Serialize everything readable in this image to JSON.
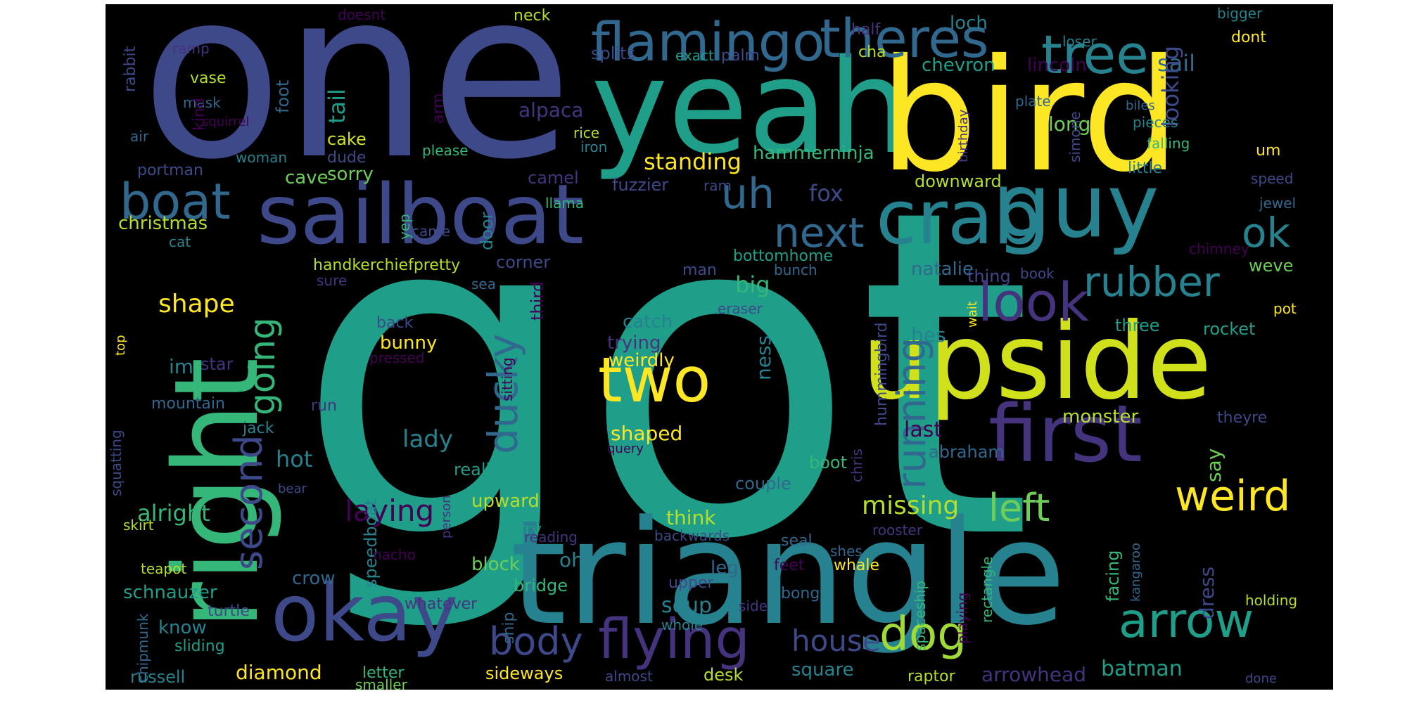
{
  "palette": {
    "dark_purple": "#440154",
    "purple": "#46337e",
    "indigo": "#3e4989",
    "blue": "#31688e",
    "teal": "#26828e",
    "green_teal": "#1f9e89",
    "green": "#35b779",
    "lime": "#6ece58",
    "yellow_green": "#b5de2b",
    "yellow": "#fde725",
    "background": "#000000"
  },
  "words": [
    {
      "text": "got",
      "color": "#1f9e89"
    },
    {
      "text": "one",
      "color": "#3e4989"
    },
    {
      "text": "yeah",
      "color": "#1f9e89"
    },
    {
      "text": "bird",
      "color": "#fde725"
    },
    {
      "text": "triangle",
      "color": "#26828e"
    },
    {
      "text": "upside",
      "color": "#d0e11c"
    },
    {
      "text": "sailboat",
      "color": "#3e4989"
    },
    {
      "text": "right",
      "color": "#35b779"
    },
    {
      "text": "guy",
      "color": "#26828e"
    },
    {
      "text": "crab",
      "color": "#26828e"
    },
    {
      "text": "first",
      "color": "#46337e"
    },
    {
      "text": "okay",
      "color": "#3e4989"
    },
    {
      "text": "flamingo",
      "color": "#31688e"
    },
    {
      "text": "theres",
      "color": "#31688e"
    },
    {
      "text": "tree",
      "color": "#26828e"
    },
    {
      "text": "two",
      "color": "#fde725"
    },
    {
      "text": "boat",
      "color": "#31688e"
    },
    {
      "text": "flying",
      "color": "#46337e"
    },
    {
      "text": "arrow",
      "color": "#1f9e89"
    },
    {
      "text": "weird",
      "color": "#fde725"
    },
    {
      "text": "dog",
      "color": "#a0da39"
    },
    {
      "text": "uh",
      "color": "#31688e"
    },
    {
      "text": "next",
      "color": "#31688e"
    },
    {
      "text": "rubber",
      "color": "#26828e"
    },
    {
      "text": "look",
      "color": "#46337e"
    },
    {
      "text": "ok",
      "color": "#26828e"
    },
    {
      "text": "ducky",
      "color": "#31688e"
    },
    {
      "text": "running",
      "color": "#31688e"
    },
    {
      "text": "left",
      "color": "#6ece58"
    },
    {
      "text": "body",
      "color": "#3e4989"
    },
    {
      "text": "second",
      "color": "#3e4989"
    },
    {
      "text": "going",
      "color": "#35b779"
    },
    {
      "text": "laying",
      "color": "#440154"
    },
    {
      "text": "house",
      "color": "#3e4989"
    },
    {
      "text": "missing",
      "color": "#b5de2b"
    },
    {
      "text": "shape",
      "color": "#fde725"
    },
    {
      "text": "tail",
      "color": "#1f9e89"
    },
    {
      "text": "standing",
      "color": "#fde725"
    },
    {
      "text": "alpaca",
      "color": "#46337e"
    },
    {
      "text": "fox",
      "color": "#3e4989"
    },
    {
      "text": "hammerninja",
      "color": "#35b779"
    },
    {
      "text": "chevron",
      "color": "#1f9e89"
    },
    {
      "text": "lincoln",
      "color": "#440154"
    },
    {
      "text": "sail",
      "color": "#31688e"
    },
    {
      "text": "looking",
      "color": "#3e4989"
    },
    {
      "text": "long",
      "color": "#6ece58"
    },
    {
      "text": "splits",
      "color": "#3e4989"
    },
    {
      "text": "loch",
      "color": "#26828e"
    },
    {
      "text": "half",
      "color": "#46337e"
    },
    {
      "text": "cha",
      "color": "#b5de2b"
    },
    {
      "text": "exact",
      "color": "#1f9e89"
    },
    {
      "text": "palm",
      "color": "#3e4989"
    },
    {
      "text": "neck",
      "color": "#b5de2b"
    },
    {
      "text": "doesnt",
      "color": "#440154"
    },
    {
      "text": "bigger",
      "color": "#26828e"
    },
    {
      "text": "dont",
      "color": "#fde725"
    },
    {
      "text": "loser",
      "color": "#26828e"
    },
    {
      "text": "ramp",
      "color": "#46337e"
    },
    {
      "text": "rabbit",
      "color": "#3e4989"
    },
    {
      "text": "vase",
      "color": "#b5de2b"
    },
    {
      "text": "mask",
      "color": "#31688e"
    },
    {
      "text": "foot",
      "color": "#31688e"
    },
    {
      "text": "kind",
      "color": "#440154"
    },
    {
      "text": "arm",
      "color": "#440154"
    },
    {
      "text": "air",
      "color": "#31688e"
    },
    {
      "text": "cake",
      "color": "#d0e11c"
    },
    {
      "text": "rice",
      "color": "#b5de2b"
    },
    {
      "text": "iron",
      "color": "#26828e"
    },
    {
      "text": "please",
      "color": "#35b779"
    },
    {
      "text": "woman",
      "color": "#26828e"
    },
    {
      "text": "dude",
      "color": "#3e4989"
    },
    {
      "text": "portman",
      "color": "#3e4989"
    },
    {
      "text": "cave",
      "color": "#6ece58"
    },
    {
      "text": "sorry",
      "color": "#6ece58"
    },
    {
      "text": "camel",
      "color": "#46337e"
    },
    {
      "text": "fuzzier",
      "color": "#3e4989"
    },
    {
      "text": "llama",
      "color": "#35b779"
    },
    {
      "text": "ram",
      "color": "#3e4989"
    },
    {
      "text": "christmas",
      "color": "#b5de2b"
    },
    {
      "text": "cat",
      "color": "#26828e"
    },
    {
      "text": "yep",
      "color": "#35b779"
    },
    {
      "text": "door",
      "color": "#26828e"
    },
    {
      "text": "came",
      "color": "#3e4989"
    },
    {
      "text": "downward",
      "color": "#b5de2b"
    },
    {
      "text": "bottomhome",
      "color": "#1f9e89"
    },
    {
      "text": "man",
      "color": "#3e4989"
    },
    {
      "text": "bunch",
      "color": "#31688e"
    },
    {
      "text": "big",
      "color": "#35b779"
    },
    {
      "text": "natalie",
      "color": "#31688e"
    },
    {
      "text": "thing",
      "color": "#3e4989"
    },
    {
      "text": "book",
      "color": "#3e4989"
    },
    {
      "text": "handkerchiefpretty",
      "color": "#b5de2b"
    },
    {
      "text": "corner",
      "color": "#3e4989"
    },
    {
      "text": "sure",
      "color": "#46337e"
    },
    {
      "text": "sea",
      "color": "#31688e"
    },
    {
      "text": "eraser",
      "color": "#3e4989"
    },
    {
      "text": "third",
      "color": "#440154"
    },
    {
      "text": "catch",
      "color": "#26828e"
    },
    {
      "text": "trying",
      "color": "#46337e"
    },
    {
      "text": "weirdly",
      "color": "#fde725"
    },
    {
      "text": "back",
      "color": "#3e4989"
    },
    {
      "text": "bunny",
      "color": "#fde725"
    },
    {
      "text": "pressed",
      "color": "#440154"
    },
    {
      "text": "im",
      "color": "#26828e"
    },
    {
      "text": "star",
      "color": "#46337e"
    },
    {
      "text": "mountain",
      "color": "#31688e"
    },
    {
      "text": "run",
      "color": "#46337e"
    },
    {
      "text": "jack",
      "color": "#26828e"
    },
    {
      "text": "hot",
      "color": "#26828e"
    },
    {
      "text": "lady",
      "color": "#26828e"
    },
    {
      "text": "shaped",
      "color": "#fde725"
    },
    {
      "text": "query",
      "color": "#440154"
    },
    {
      "text": "sitting",
      "color": "#440154"
    },
    {
      "text": "ness",
      "color": "#26828e"
    },
    {
      "text": "hummingbird",
      "color": "#3e4989"
    },
    {
      "text": "boot",
      "color": "#35b779"
    },
    {
      "text": "chris",
      "color": "#46337e"
    },
    {
      "text": "couple",
      "color": "#31688e"
    },
    {
      "text": "really",
      "color": "#1f9e89"
    },
    {
      "text": "hes",
      "color": "#26828e"
    },
    {
      "text": "last",
      "color": "#440154"
    },
    {
      "text": "monster",
      "color": "#b5de2b"
    },
    {
      "text": "abraham",
      "color": "#31688e"
    },
    {
      "text": "three",
      "color": "#1f9e89"
    },
    {
      "text": "rocket",
      "color": "#1f9e89"
    },
    {
      "text": "wait",
      "color": "#fde725"
    },
    {
      "text": "pot",
      "color": "#fde725"
    },
    {
      "text": "theyre",
      "color": "#3e4989"
    },
    {
      "text": "say",
      "color": "#6ece58"
    },
    {
      "text": "weve",
      "color": "#6ece58"
    },
    {
      "text": "chimney",
      "color": "#440154"
    },
    {
      "text": "jewel",
      "color": "#31688e"
    },
    {
      "text": "speed",
      "color": "#3e4989"
    },
    {
      "text": "um",
      "color": "#fde725"
    },
    {
      "text": "little",
      "color": "#26828e"
    },
    {
      "text": "falling",
      "color": "#35b779"
    },
    {
      "text": "pieces",
      "color": "#26828e"
    },
    {
      "text": "biles",
      "color": "#31688e"
    },
    {
      "text": "simone",
      "color": "#3e4989"
    },
    {
      "text": "plate",
      "color": "#31688e"
    },
    {
      "text": "birthday",
      "color": "#46337e"
    },
    {
      "text": "squirrel",
      "color": "#440154"
    },
    {
      "text": "top",
      "color": "#fde725"
    },
    {
      "text": "alright",
      "color": "#35b779"
    },
    {
      "text": "speedboat",
      "color": "#26828e"
    },
    {
      "text": "crow",
      "color": "#31688e"
    },
    {
      "text": "schnauzer",
      "color": "#1f9e89"
    },
    {
      "text": "turtle",
      "color": "#3e4989"
    },
    {
      "text": "know",
      "color": "#26828e"
    },
    {
      "text": "sliding",
      "color": "#1f9e89"
    },
    {
      "text": "teapot",
      "color": "#b5de2b"
    },
    {
      "text": "squatting",
      "color": "#3e4989"
    },
    {
      "text": "skirt",
      "color": "#b5de2b"
    },
    {
      "text": "chipmunk",
      "color": "#31688e"
    },
    {
      "text": "russell",
      "color": "#26828e"
    },
    {
      "text": "diamond",
      "color": "#fde725"
    },
    {
      "text": "letter",
      "color": "#35b779"
    },
    {
      "text": "smaller",
      "color": "#6ece58"
    },
    {
      "text": "sideways",
      "color": "#fde725"
    },
    {
      "text": "almost",
      "color": "#3e4989"
    },
    {
      "text": "desk",
      "color": "#b5de2b"
    },
    {
      "text": "square",
      "color": "#26828e"
    },
    {
      "text": "raptor",
      "color": "#b5de2b"
    },
    {
      "text": "arrowhead",
      "color": "#46337e"
    },
    {
      "text": "batman",
      "color": "#1f9e89"
    },
    {
      "text": "done",
      "color": "#3e4989"
    },
    {
      "text": "holding",
      "color": "#b5de2b"
    },
    {
      "text": "dress",
      "color": "#3e4989"
    },
    {
      "text": "facing",
      "color": "#35b779"
    },
    {
      "text": "kangaroo",
      "color": "#31688e"
    },
    {
      "text": "rectangle",
      "color": "#35b779"
    },
    {
      "text": "playing",
      "color": "#440154"
    },
    {
      "text": "spaceship",
      "color": "#35b779"
    },
    {
      "text": "whale",
      "color": "#fde725"
    },
    {
      "text": "shes",
      "color": "#31688e"
    },
    {
      "text": "rooster",
      "color": "#46337e"
    },
    {
      "text": "seal",
      "color": "#31688e"
    },
    {
      "text": "feet",
      "color": "#440154"
    },
    {
      "text": "bong",
      "color": "#31688e"
    },
    {
      "text": "side",
      "color": "#46337e"
    },
    {
      "text": "leg",
      "color": "#31688e"
    },
    {
      "text": "upper",
      "color": "#3e4989"
    },
    {
      "text": "soup",
      "color": "#26828e"
    },
    {
      "text": "whole",
      "color": "#26828e"
    },
    {
      "text": "bridge",
      "color": "#35b779"
    },
    {
      "text": "block",
      "color": "#6ece58"
    },
    {
      "text": "whatever",
      "color": "#46337e"
    },
    {
      "text": "ship",
      "color": "#31688e"
    },
    {
      "text": "oh",
      "color": "#26828e"
    },
    {
      "text": "think",
      "color": "#b5de2b"
    },
    {
      "text": "upward",
      "color": "#b5de2b"
    },
    {
      "text": "larry",
      "color": "#1f9e89"
    },
    {
      "text": "backwards",
      "color": "#3e4989"
    },
    {
      "text": "reading",
      "color": "#46337e"
    },
    {
      "text": "nacho",
      "color": "#440154"
    },
    {
      "text": "person",
      "color": "#46337e"
    },
    {
      "text": "bear",
      "color": "#3e4989"
    }
  ]
}
